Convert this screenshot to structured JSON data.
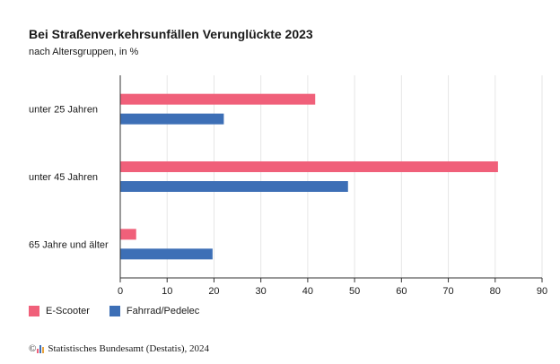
{
  "title": "Bei Straßenverkehrsunfällen Verunglückte 2023",
  "subtitle": "nach Altersgruppen, in %",
  "chart_data": {
    "type": "bar",
    "orientation": "horizontal",
    "categories": [
      "unter 25 Jahren",
      "unter 45 Jahren",
      "65 Jahre und älter"
    ],
    "series": [
      {
        "name": "E-Scooter",
        "color": "#f0607a",
        "values": [
          41.5,
          80.5,
          3.3
        ]
      },
      {
        "name": "Fahrrad/Pedelec",
        "color": "#3d6fb6",
        "values": [
          22.0,
          48.5,
          19.6
        ]
      }
    ],
    "xlim": [
      0,
      90
    ],
    "xticks": [
      0,
      10,
      20,
      30,
      40,
      50,
      60,
      70,
      80,
      90
    ],
    "grid": true,
    "legend_position": "bottom-left"
  },
  "legend": {
    "escooter_label": "E-Scooter",
    "fahrrad_label": "Fahrrad/Pedelec"
  },
  "source": {
    "copyright_symbol": "©",
    "text": "Statistisches Bundesamt (Destatis), 2024"
  }
}
